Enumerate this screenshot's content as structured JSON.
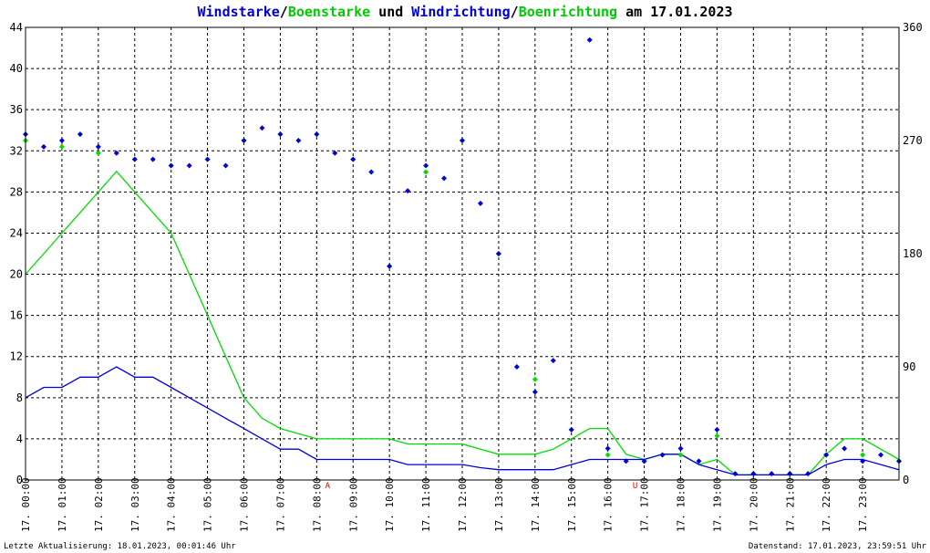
{
  "title_parts": [
    {
      "text": "Windstarke",
      "color": "#0000cc"
    },
    {
      "text": "/",
      "color": "#000000"
    },
    {
      "text": "Boenstarke",
      "color": "#00cc00"
    },
    {
      "text": " und ",
      "color": "#000000"
    },
    {
      "text": "Windrichtung",
      "color": "#0000cc"
    },
    {
      "text": "/",
      "color": "#000000"
    },
    {
      "text": "Boenrichtung",
      "color": "#00cc00"
    },
    {
      "text": " am 17.01.2023",
      "color": "#000000"
    }
  ],
  "footer": {
    "left": "Letzte Aktualisierung: 18.01.2023, 00:01:46 Uhr",
    "right": "Datenstand: 17.01.2023, 23:59:51 Uhr"
  },
  "colors": {
    "wind": "#0000dd",
    "gust": "#00dd00",
    "grid": "#000000",
    "marker": "#dd0000"
  },
  "chart_data": {
    "type": "line",
    "x_tick_labels": [
      "17. 00:00",
      "17. 01:00",
      "17. 02:00",
      "17. 03:00",
      "17. 04:00",
      "17. 05:00",
      "17. 06:00",
      "17. 07:00",
      "17. 08:00",
      "17. 09:00",
      "17. 10:00",
      "17. 11:00",
      "17. 12:00",
      "17. 13:00",
      "17. 14:00",
      "17. 15:00",
      "17. 16:00",
      "17. 17:00",
      "17. 18:00",
      "17. 19:00",
      "17. 20:00",
      "17. 21:00",
      "17. 22:00",
      "17. 23:00"
    ],
    "xlim_hours": [
      0,
      24
    ],
    "y_left": {
      "ylim": [
        0,
        44
      ],
      "ticks": [
        0,
        4,
        8,
        12,
        16,
        20,
        24,
        28,
        32,
        36,
        40,
        44
      ]
    },
    "y_right": {
      "ylim": [
        0,
        360
      ],
      "ticks": [
        0,
        90,
        180,
        270,
        360
      ]
    },
    "markers": [
      {
        "hour": 8.3,
        "label": "A"
      },
      {
        "hour": 16.75,
        "label": "U"
      }
    ],
    "series": [
      {
        "name": "Windstarke",
        "axis": "left",
        "style": "line",
        "x": [
          0,
          0.5,
          1,
          1.5,
          2,
          2.5,
          3,
          3.5,
          4,
          4.5,
          5,
          5.5,
          6,
          6.5,
          7,
          7.5,
          8,
          8.5,
          9,
          9.5,
          10,
          10.5,
          11,
          11.5,
          12,
          12.5,
          13,
          13.5,
          14,
          14.5,
          15,
          15.5,
          16,
          16.5,
          17,
          17.5,
          18,
          18.5,
          19,
          19.5,
          20,
          20.5,
          21,
          21.5,
          22,
          22.5,
          23,
          23.5,
          24
        ],
        "y": [
          8,
          9,
          9,
          10,
          10,
          11,
          10,
          10,
          9,
          8,
          7,
          6,
          5,
          4,
          3,
          3,
          2,
          2,
          2,
          2,
          2,
          1.5,
          1.5,
          1.5,
          1.5,
          1.2,
          1,
          1,
          1,
          1,
          1.5,
          2,
          2,
          2,
          2,
          2.5,
          2.5,
          1.5,
          1,
          0.5,
          0.5,
          0.5,
          0.5,
          0.5,
          1.5,
          2,
          2,
          1.5,
          1
        ]
      },
      {
        "name": "Boenstarke",
        "axis": "left",
        "style": "line",
        "x": [
          0,
          0.5,
          1,
          1.5,
          2,
          2.5,
          3,
          3.5,
          4,
          4.5,
          5,
          5.5,
          6,
          6.5,
          7,
          7.5,
          8,
          8.5,
          9,
          9.5,
          10,
          10.5,
          11,
          11.5,
          12,
          12.5,
          13,
          13.5,
          14,
          14.5,
          15,
          15.5,
          16,
          16.5,
          17,
          17.5,
          18,
          18.5,
          19,
          19.5,
          20,
          20.5,
          21,
          21.5,
          22,
          22.5,
          23,
          23.5,
          24
        ],
        "y": [
          20,
          22,
          24,
          26,
          28,
          30,
          28,
          26,
          24,
          20,
          16,
          12,
          8,
          6,
          5,
          4.5,
          4,
          4,
          4,
          4,
          4,
          3.5,
          3.5,
          3.5,
          3.5,
          3,
          2.5,
          2.5,
          2.5,
          3,
          4,
          5,
          5,
          2.5,
          2,
          2.5,
          2.5,
          1.5,
          2,
          0.5,
          0.5,
          0.5,
          0.5,
          0.5,
          2.5,
          4,
          4,
          3,
          2
        ]
      },
      {
        "name": "Windrichtung",
        "axis": "right",
        "style": "points",
        "x": [
          0,
          0.5,
          1,
          1.5,
          2,
          2.5,
          3,
          3.5,
          4,
          4.5,
          5,
          5.5,
          6,
          6.5,
          7,
          7.5,
          8,
          8.5,
          9,
          9.5,
          10,
          10.5,
          11,
          11.5,
          12,
          12.5,
          13,
          13.5,
          14,
          14.5,
          15,
          15.5,
          16,
          16.5,
          17,
          17.5,
          18,
          18.5,
          19,
          19.5,
          20,
          20.5,
          21,
          21.5,
          22,
          22.5,
          23,
          23.5,
          24
        ],
        "y": [
          275,
          265,
          270,
          275,
          265,
          260,
          255,
          255,
          250,
          250,
          255,
          250,
          270,
          280,
          275,
          270,
          275,
          260,
          255,
          245,
          170,
          230,
          250,
          240,
          270,
          220,
          180,
          90,
          70,
          95,
          40,
          350,
          25,
          15,
          15,
          20,
          25,
          15,
          40,
          5,
          5,
          5,
          5,
          5,
          20,
          25,
          15,
          20,
          15
        ]
      },
      {
        "name": "Boenrichtung",
        "axis": "right",
        "style": "points",
        "x": [
          0,
          1,
          2,
          3,
          4,
          5,
          6,
          7,
          8,
          9,
          10,
          11,
          12,
          13,
          14,
          15,
          16,
          17,
          18,
          19,
          20,
          21,
          22,
          23,
          24
        ],
        "y": [
          270,
          265,
          260,
          255,
          250,
          255,
          270,
          275,
          275,
          255,
          170,
          245,
          270,
          180,
          80,
          40,
          20,
          15,
          20,
          35,
          5,
          5,
          20,
          20,
          15
        ]
      }
    ]
  }
}
